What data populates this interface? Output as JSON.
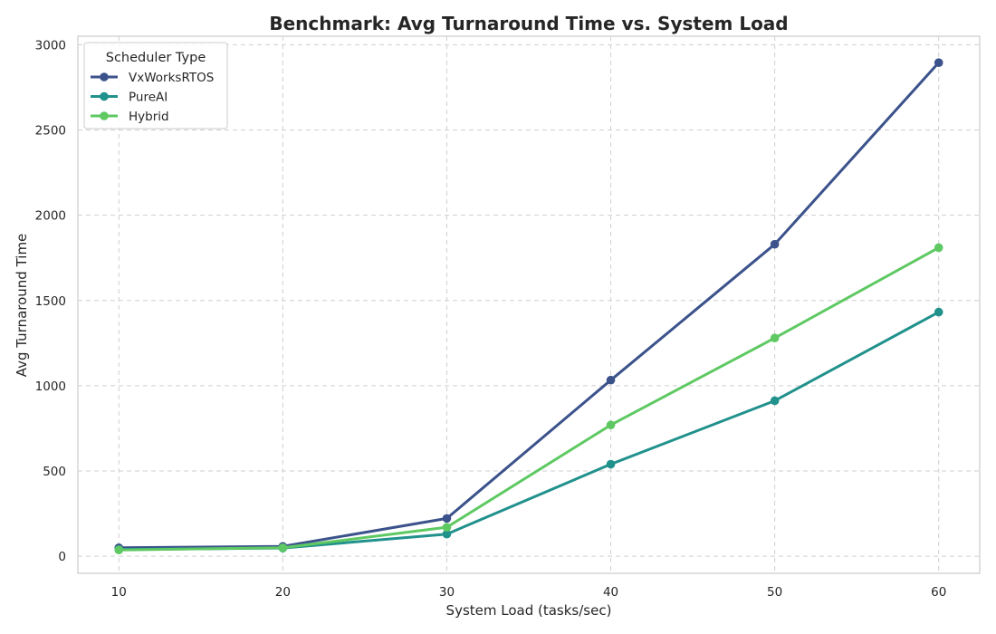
{
  "chart_data": {
    "type": "line",
    "title": "Benchmark: Avg Turnaround Time vs. System Load",
    "xlabel": "System Load (tasks/sec)",
    "ylabel": "Avg Turnaround Time",
    "x": [
      10,
      20,
      30,
      40,
      50,
      60
    ],
    "xlim": [
      7.5,
      62.5
    ],
    "ylim": [
      -100,
      3050
    ],
    "xticks": [
      10,
      20,
      30,
      40,
      50,
      60
    ],
    "yticks": [
      0,
      500,
      1000,
      1500,
      2000,
      2500,
      3000
    ],
    "grid": true,
    "legend": {
      "title": "Scheduler Type",
      "placement": "top-left"
    },
    "series": [
      {
        "name": "VxWorksRTOS",
        "color": "#3b528b",
        "values": [
          50,
          58,
          222,
          1033,
          1830,
          2895
        ]
      },
      {
        "name": "PureAI",
        "color": "#21918c",
        "values": [
          40,
          48,
          130,
          540,
          912,
          1432
        ]
      },
      {
        "name": "Hybrid",
        "color": "#5ec962",
        "values": [
          37,
          50,
          170,
          770,
          1280,
          1810
        ]
      }
    ]
  }
}
